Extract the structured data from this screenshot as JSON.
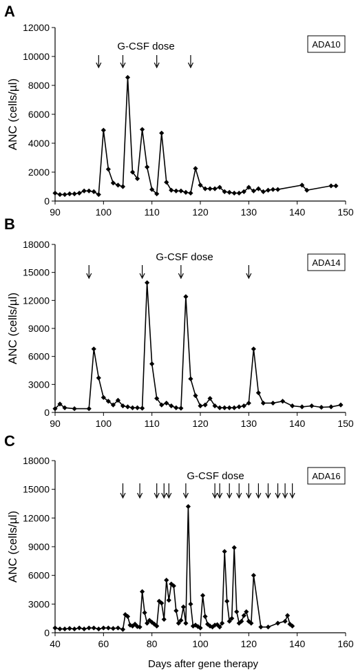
{
  "x_axis_label": "Days after gene therapy",
  "chart_data": [
    {
      "panel": "A",
      "type": "line",
      "marker": "diamond",
      "ylabel": "ANC (cells/µl)",
      "badge": "ADA10",
      "annotation": "G-CSF dose",
      "xlim": [
        90,
        150
      ],
      "xticks": [
        90,
        100,
        110,
        120,
        130,
        140,
        150
      ],
      "ylim": [
        0,
        12000
      ],
      "yticks": [
        0,
        2000,
        4000,
        6000,
        8000,
        10000,
        12000
      ],
      "ytick_labels": [
        "0",
        "2000",
        "4000",
        "6000",
        "8000",
        "10000",
        "12000"
      ],
      "dose_days": [
        99,
        104,
        111,
        118
      ],
      "x": [
        90,
        91,
        92,
        93,
        94,
        95,
        96,
        97,
        98,
        99,
        100,
        101,
        102,
        103,
        104,
        105,
        106,
        107,
        108,
        109,
        110,
        111,
        112,
        113,
        114,
        115,
        116,
        117,
        118,
        119,
        120,
        121,
        122,
        123,
        124,
        125,
        126,
        127,
        128,
        129,
        130,
        131,
        132,
        133,
        134,
        135,
        136,
        141,
        142,
        147,
        148
      ],
      "values": [
        550,
        450,
        450,
        500,
        500,
        550,
        700,
        700,
        650,
        450,
        4900,
        2200,
        1250,
        1100,
        1000,
        8550,
        2000,
        1550,
        4950,
        2350,
        800,
        500,
        4700,
        1300,
        750,
        700,
        700,
        600,
        550,
        2250,
        1100,
        850,
        850,
        850,
        950,
        650,
        600,
        550,
        550,
        650,
        950,
        700,
        850,
        650,
        750,
        800,
        800,
        1100,
        750,
        1050,
        1050
      ]
    },
    {
      "panel": "B",
      "type": "line",
      "marker": "diamond",
      "ylabel": "ANC (cells/µl)",
      "badge": "ADA14",
      "annotation": "G-CSF dose",
      "xlim": [
        90,
        150
      ],
      "xticks": [
        90,
        100,
        110,
        120,
        130,
        140,
        150
      ],
      "ylim": [
        0,
        18000
      ],
      "yticks": [
        0,
        3000,
        6000,
        9000,
        12000,
        15000,
        18000
      ],
      "ytick_labels": [
        "0",
        "3000",
        "6000",
        "9000",
        "12000",
        "15000",
        "18000"
      ],
      "dose_days": [
        97,
        108,
        116,
        130
      ],
      "x": [
        90,
        91,
        92,
        94,
        97,
        98,
        99,
        100,
        101,
        102,
        103,
        104,
        105,
        106,
        107,
        108,
        109,
        110,
        111,
        112,
        113,
        114,
        115,
        116,
        117,
        118,
        119,
        120,
        121,
        122,
        123,
        124,
        125,
        126,
        127,
        128,
        129,
        130,
        131,
        132,
        133,
        135,
        137,
        139,
        141,
        143,
        145,
        147,
        149
      ],
      "values": [
        400,
        900,
        500,
        400,
        400,
        6800,
        3700,
        1600,
        1200,
        800,
        1300,
        700,
        600,
        500,
        500,
        450,
        13900,
        5200,
        1500,
        800,
        1000,
        700,
        500,
        450,
        12400,
        3600,
        1800,
        700,
        800,
        1500,
        700,
        500,
        500,
        500,
        500,
        600,
        700,
        1000,
        6800,
        2100,
        1000,
        1000,
        1200,
        700,
        600,
        700,
        550,
        600,
        800
      ]
    },
    {
      "panel": "C",
      "type": "line",
      "marker": "diamond",
      "ylabel": "ANC (cells/µl)",
      "badge": "ADA16",
      "annotation": "G-CSF dose",
      "xlim": [
        40,
        160
      ],
      "xticks": [
        40,
        60,
        80,
        100,
        120,
        140,
        160
      ],
      "ylim": [
        0,
        18000
      ],
      "yticks": [
        0,
        3000,
        6000,
        9000,
        12000,
        15000,
        18000
      ],
      "ytick_labels": [
        "0",
        "3000",
        "6000",
        "9000",
        "12000",
        "15000",
        "18000"
      ],
      "dose_days": [
        68,
        75,
        82,
        85,
        87,
        94,
        106,
        108,
        112,
        116,
        120,
        124,
        128,
        132,
        135,
        138
      ],
      "x": [
        40,
        42,
        44,
        46,
        48,
        50,
        52,
        54,
        56,
        58,
        60,
        62,
        64,
        66,
        68,
        69,
        70,
        71,
        72,
        73,
        74,
        75,
        76,
        77,
        78,
        79,
        80,
        81,
        82,
        83,
        84,
        85,
        86,
        87,
        88,
        89,
        90,
        91,
        92,
        93,
        94,
        95,
        96,
        97,
        98,
        99,
        100,
        101,
        102,
        103,
        104,
        105,
        106,
        107,
        108,
        109,
        110,
        111,
        112,
        113,
        114,
        115,
        116,
        117,
        118,
        119,
        120,
        121,
        122,
        125,
        128,
        132,
        135,
        136,
        137,
        138
      ],
      "values": [
        500,
        400,
        400,
        450,
        400,
        500,
        400,
        500,
        500,
        400,
        500,
        500,
        450,
        500,
        350,
        1900,
        1700,
        800,
        700,
        900,
        650,
        600,
        4300,
        2100,
        1000,
        1300,
        1100,
        900,
        700,
        3300,
        3100,
        1400,
        5500,
        3400,
        5100,
        4900,
        2300,
        1000,
        1300,
        2700,
        1000,
        13200,
        3000,
        700,
        800,
        650,
        500,
        3900,
        1700,
        900,
        700,
        600,
        800,
        850,
        600,
        1000,
        8500,
        3300,
        1200,
        1500,
        8900,
        2200,
        1000,
        1200,
        1800,
        2200,
        1200,
        1000,
        6000,
        600,
        600,
        1000,
        1200,
        1800,
        900,
        700
      ]
    }
  ]
}
